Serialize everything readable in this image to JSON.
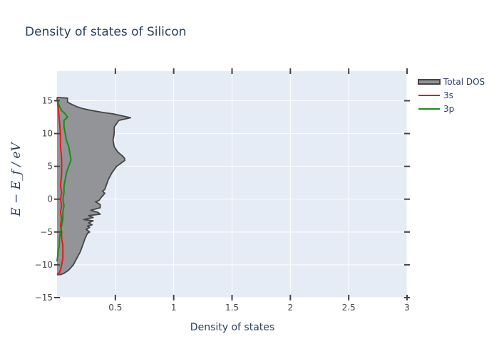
{
  "chart_data": {
    "type": "area",
    "title": "Density of states of Silicon",
    "xlabel": "Density of states",
    "ylabel": "E − E_f   /   eV",
    "xlim": [
      0,
      3
    ],
    "ylim": [
      -15,
      19.5
    ],
    "x_ticks": [
      {
        "value": 0.5,
        "label": "0.5"
      },
      {
        "value": 1,
        "label": "1"
      },
      {
        "value": 1.5,
        "label": "1.5"
      },
      {
        "value": 2,
        "label": "2"
      },
      {
        "value": 2.5,
        "label": "2.5"
      },
      {
        "value": 3,
        "label": "3"
      }
    ],
    "y_ticks": [
      {
        "value": 15,
        "label": "15"
      },
      {
        "value": 10,
        "label": "10"
      },
      {
        "value": 5,
        "label": "5"
      },
      {
        "value": 0,
        "label": "0"
      },
      {
        "value": -5,
        "label": "−5"
      },
      {
        "value": -10,
        "label": "−10"
      },
      {
        "value": -15,
        "label": "−15"
      }
    ],
    "grid": true,
    "legend_position": "top-right",
    "colors": {
      "plot_bg": "#e5ecf6",
      "grid": "#ffffff",
      "total_fill": "#929497",
      "total_line": "#444444",
      "s": "#e31a1c",
      "p": "#1a8c1a"
    },
    "series": [
      {
        "name": "Total DOS",
        "color": "#444444",
        "fill": "#929497",
        "points": [
          [
            0,
            15.5
          ],
          [
            0.09,
            15.4
          ],
          [
            0.09,
            14.8
          ],
          [
            0.12,
            14.5
          ],
          [
            0.17,
            14.1
          ],
          [
            0.22,
            13.8
          ],
          [
            0.3,
            13.5
          ],
          [
            0.4,
            13.2
          ],
          [
            0.48,
            13.0
          ],
          [
            0.56,
            12.7
          ],
          [
            0.63,
            12.4
          ],
          [
            0.53,
            12.0
          ],
          [
            0.49,
            11.0
          ],
          [
            0.49,
            10.0
          ],
          [
            0.48,
            9.0
          ],
          [
            0.49,
            8.0
          ],
          [
            0.52,
            7.2
          ],
          [
            0.56,
            6.6
          ],
          [
            0.58,
            6.2
          ],
          [
            0.58,
            5.9
          ],
          [
            0.55,
            5.5
          ],
          [
            0.51,
            5.0
          ],
          [
            0.47,
            4.0
          ],
          [
            0.44,
            3.0
          ],
          [
            0.42,
            2.0
          ],
          [
            0.41,
            1.5
          ],
          [
            0.39,
            1.2
          ],
          [
            0.41,
            0.9
          ],
          [
            0.38,
            0.3
          ],
          [
            0.36,
            -0.2
          ],
          [
            0.33,
            -0.4
          ],
          [
            0.37,
            -0.8
          ],
          [
            0.37,
            -1.3
          ],
          [
            0.29,
            -1.7
          ],
          [
            0.35,
            -2.0
          ],
          [
            0.37,
            -2.3
          ],
          [
            0.27,
            -2.5
          ],
          [
            0.31,
            -2.8
          ],
          [
            0.23,
            -3.1
          ],
          [
            0.31,
            -3.3
          ],
          [
            0.27,
            -3.6
          ],
          [
            0.3,
            -3.9
          ],
          [
            0.26,
            -4.1
          ],
          [
            0.28,
            -4.3
          ],
          [
            0.25,
            -4.6
          ],
          [
            0.28,
            -5.0
          ],
          [
            0.26,
            -5.2
          ],
          [
            0.24,
            -6.0
          ],
          [
            0.22,
            -7.0
          ],
          [
            0.2,
            -8.0
          ],
          [
            0.17,
            -9.0
          ],
          [
            0.14,
            -10.0
          ],
          [
            0.1,
            -10.8
          ],
          [
            0.06,
            -11.3
          ],
          [
            0.03,
            -11.5
          ],
          [
            0,
            -11.5
          ]
        ]
      },
      {
        "name": "3s",
        "color": "#e31a1c",
        "points": [
          [
            0,
            15.5
          ],
          [
            0.01,
            14.0
          ],
          [
            0.02,
            12.0
          ],
          [
            0.03,
            10.0
          ],
          [
            0.03,
            8.0
          ],
          [
            0.04,
            6.0
          ],
          [
            0.04,
            4.0
          ],
          [
            0.03,
            2.0
          ],
          [
            0.04,
            1.0
          ],
          [
            0.03,
            0.0
          ],
          [
            0.04,
            -1.0
          ],
          [
            0.03,
            -2.0
          ],
          [
            0.04,
            -3.0
          ],
          [
            0.03,
            -4.0
          ],
          [
            0.04,
            -5.0
          ],
          [
            0.04,
            -6.0
          ],
          [
            0.05,
            -7.0
          ],
          [
            0.05,
            -8.0
          ],
          [
            0.05,
            -9.0
          ],
          [
            0.04,
            -10.0
          ],
          [
            0.03,
            -10.8
          ],
          [
            0.02,
            -11.2
          ],
          [
            0,
            -11.5
          ]
        ]
      },
      {
        "name": "3p",
        "color": "#1a8c1a",
        "points": [
          [
            0,
            15.2
          ],
          [
            0.02,
            14.2
          ],
          [
            0.04,
            13.5
          ],
          [
            0.07,
            13.0
          ],
          [
            0.09,
            12.5
          ],
          [
            0.06,
            12.0
          ],
          [
            0.06,
            11.0
          ],
          [
            0.07,
            10.0
          ],
          [
            0.08,
            9.0
          ],
          [
            0.1,
            8.0
          ],
          [
            0.11,
            7.0
          ],
          [
            0.12,
            6.0
          ],
          [
            0.1,
            5.0
          ],
          [
            0.08,
            4.0
          ],
          [
            0.07,
            3.0
          ],
          [
            0.06,
            2.0
          ],
          [
            0.06,
            1.0
          ],
          [
            0.05,
            0.0
          ],
          [
            0.06,
            -1.0
          ],
          [
            0.05,
            -2.0
          ],
          [
            0.05,
            -3.0
          ],
          [
            0.04,
            -4.0
          ],
          [
            0.03,
            -5.0
          ],
          [
            0.02,
            -6.0
          ],
          [
            0.02,
            -7.0
          ],
          [
            0.01,
            -8.0
          ],
          [
            0,
            -9.5
          ]
        ]
      }
    ]
  }
}
